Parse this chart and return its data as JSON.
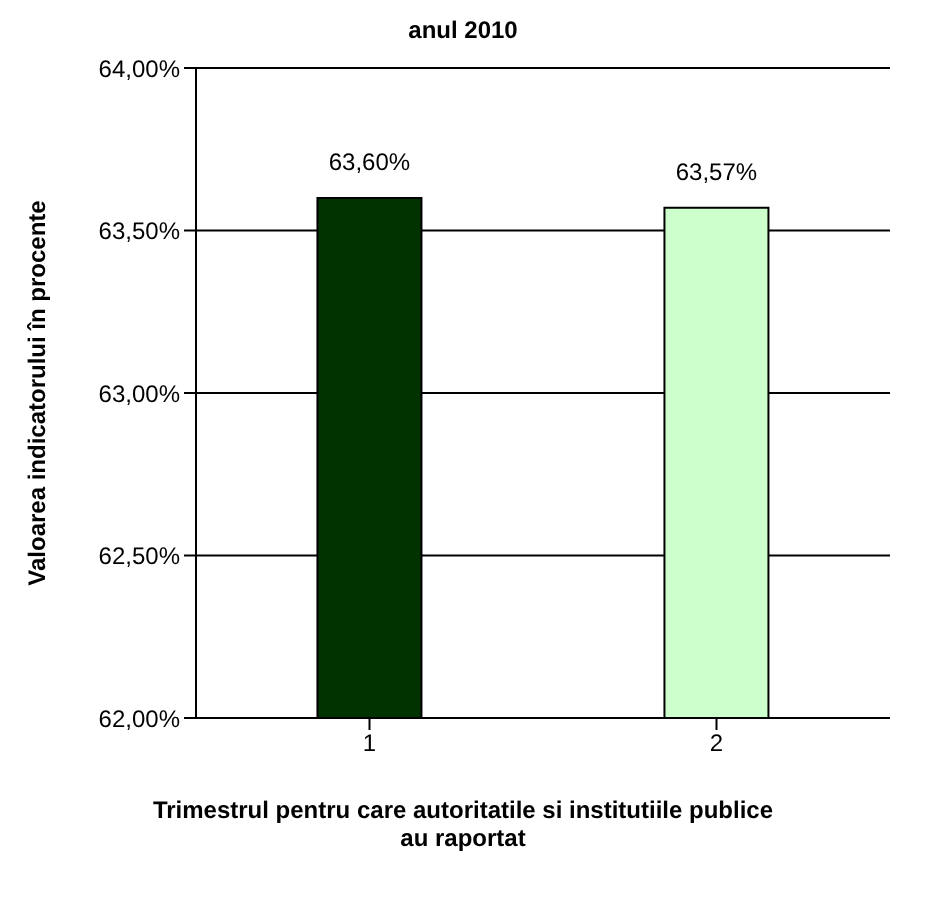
{
  "chart_data": {
    "type": "bar",
    "title": "anul 2010",
    "xlabel": "Trimestrul pentru care autoritatile si institutiile publice au raportat",
    "ylabel": "Valoarea indicatorului în procente",
    "categories": [
      "1",
      "2"
    ],
    "values": [
      63.6,
      63.57
    ],
    "colors": [
      "#003300",
      "#ccffcc"
    ],
    "value_labels": [
      "63,60%",
      "63,57%"
    ],
    "ylim": [
      62,
      64
    ],
    "yticks": [
      {
        "value": 62,
        "label": "62,00%"
      },
      {
        "value": 62.5,
        "label": "62,50%"
      },
      {
        "value": 63,
        "label": "63,00%"
      },
      {
        "value": 63.5,
        "label": "63,50%"
      },
      {
        "value": 64,
        "label": "64,00%"
      }
    ],
    "grid": "y",
    "legend": false
  }
}
